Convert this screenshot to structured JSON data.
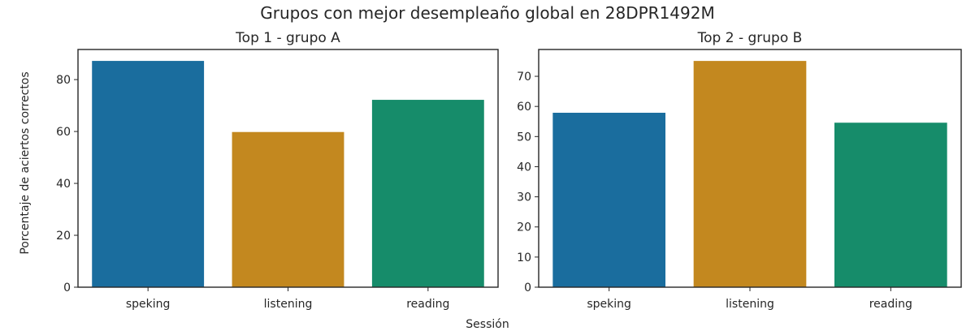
{
  "figure": {
    "suptitle": "Grupos con mejor desempleaño global en 28DPR1492M",
    "ylabel": "Porcentaje de aciertos correctos",
    "xlabel": "Sessión"
  },
  "colors": {
    "speking": "#1a6d9e",
    "listening": "#c3881f",
    "reading": "#168c6a",
    "axes": "#262626"
  },
  "chart_data": [
    {
      "type": "bar",
      "title": "Top  1 - grupo A",
      "categories": [
        "speking",
        "listening",
        "reading"
      ],
      "values": [
        87.2,
        59.8,
        72.2
      ],
      "ylim": [
        0,
        91.6
      ],
      "yticks": [
        0,
        20,
        40,
        60,
        80
      ],
      "ytick_labels": [
        "0",
        "20",
        "40",
        "60",
        "80"
      ],
      "grid": false
    },
    {
      "type": "bar",
      "title": "Top  2 - grupo B",
      "categories": [
        "speking",
        "listening",
        "reading"
      ],
      "values": [
        57.9,
        75.1,
        54.6
      ],
      "ylim": [
        0,
        78.9
      ],
      "yticks": [
        0,
        10,
        20,
        30,
        40,
        50,
        60,
        70
      ],
      "ytick_labels": [
        "0",
        "10",
        "20",
        "30",
        "40",
        "50",
        "60",
        "70"
      ],
      "grid": false
    }
  ]
}
